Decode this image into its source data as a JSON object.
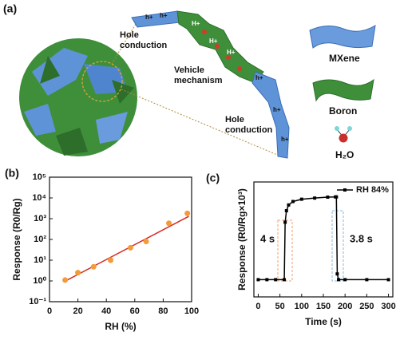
{
  "diagram": {
    "panel_label": "(a)",
    "hole_label_1": "Hole conduction",
    "vehicle_label": "Vehicle mechanism",
    "hole_label_2": "Hole conduction",
    "carriers": {
      "hole": "h+",
      "proton": "H+"
    },
    "legend": [
      "MXene",
      "Boron",
      "H₂O"
    ]
  },
  "chart_data": [
    {
      "type": "scatter",
      "panel_label": "(b)",
      "x_label": "RH (%)",
      "y_label": "Response (R0/Rg)",
      "x": [
        11,
        20,
        31,
        43,
        57,
        68,
        84,
        97
      ],
      "values": [
        1.1,
        2.5,
        4.8,
        10,
        40,
        80,
        600,
        1800
      ],
      "color": "#f39a3a",
      "fit_line": {
        "x": [
          10,
          98
        ],
        "values": [
          0.9,
          1300
        ],
        "color": "#d42a20"
      },
      "log_y": true,
      "xlim": [
        0,
        100
      ],
      "xticks": [
        0,
        20,
        40,
        60,
        80,
        100
      ],
      "ylim": [
        0.1,
        100000
      ],
      "yticks": [
        {
          "value": 0.1,
          "label": "10⁻¹"
        },
        {
          "value": 1,
          "label": "10⁰"
        },
        {
          "value": 10,
          "label": "10¹"
        },
        {
          "value": 100,
          "label": "10²"
        },
        {
          "value": 1000,
          "label": "10³"
        },
        {
          "value": 10000,
          "label": "10⁴"
        },
        {
          "value": 100000,
          "label": "10⁵"
        }
      ]
    },
    {
      "type": "line",
      "panel_label": "(c)",
      "x_label": "Time (s)",
      "y_label": "Response (R0/Rg×10³)",
      "x": [
        0,
        20,
        40,
        60,
        62,
        65,
        70,
        80,
        100,
        130,
        160,
        178,
        180,
        182,
        185,
        200,
        250,
        300
      ],
      "series": [
        {
          "name": "RH 84%",
          "color": "#000000",
          "values": [
            0,
            0,
            0,
            0,
            0.5,
            0.6,
            0.65,
            0.68,
            0.7,
            0.71,
            0.718,
            0.72,
            0.72,
            0.05,
            0,
            0,
            0,
            0
          ]
        }
      ],
      "legend": "upper right",
      "xlim": [
        -10,
        310
      ],
      "xticks": [
        0,
        50,
        100,
        150,
        200,
        250,
        300
      ],
      "ylim": [
        -0.15,
        0.85
      ],
      "annotations": [
        "4 s",
        "3.8 s"
      ]
    }
  ]
}
